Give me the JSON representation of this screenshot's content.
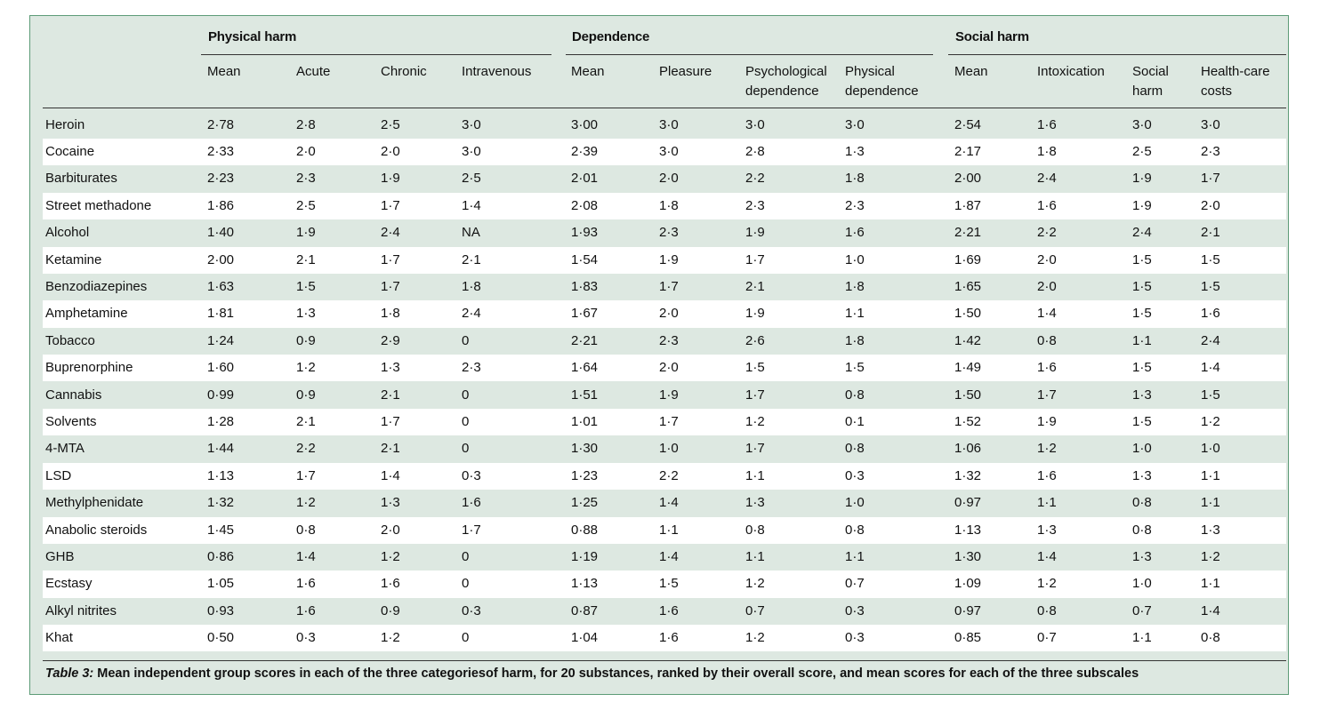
{
  "groups": [
    {
      "label": "Physical harm"
    },
    {
      "label": "Dependence"
    },
    {
      "label": "Social harm"
    }
  ],
  "columns": [
    "Mean",
    "Acute",
    "Chronic",
    "Intravenous",
    "Mean",
    "Pleasure",
    "Psychological\ndependence",
    "Physical\ndependence",
    "Mean",
    "Intoxication",
    "Social\nharm",
    "Health-care\ncosts"
  ],
  "rows": [
    {
      "substance": "Heroin",
      "values": [
        "2·78",
        "2·8",
        "2·5",
        "3·0",
        "3·00",
        "3·0",
        "3·0",
        "3·0",
        "2·54",
        "1·6",
        "3·0",
        "3·0"
      ]
    },
    {
      "substance": "Cocaine",
      "values": [
        "2·33",
        "2·0",
        "2·0",
        "3·0",
        "2·39",
        "3·0",
        "2·8",
        "1·3",
        "2·17",
        "1·8",
        "2·5",
        "2·3"
      ]
    },
    {
      "substance": "Barbiturates",
      "values": [
        "2·23",
        "2·3",
        "1·9",
        "2·5",
        "2·01",
        "2·0",
        "2·2",
        "1·8",
        "2·00",
        "2·4",
        "1·9",
        "1·7"
      ]
    },
    {
      "substance": "Street methadone",
      "values": [
        "1·86",
        "2·5",
        "1·7",
        "1·4",
        "2·08",
        "1·8",
        "2·3",
        "2·3",
        "1·87",
        "1·6",
        "1·9",
        "2·0"
      ]
    },
    {
      "substance": "Alcohol",
      "values": [
        "1·40",
        "1·9",
        "2·4",
        "NA",
        "1·93",
        "2·3",
        "1·9",
        "1·6",
        "2·21",
        "2·2",
        "2·4",
        "2·1"
      ]
    },
    {
      "substance": "Ketamine",
      "values": [
        "2·00",
        "2·1",
        "1·7",
        "2·1",
        "1·54",
        "1·9",
        "1·7",
        "1·0",
        "1·69",
        "2·0",
        "1·5",
        "1·5"
      ]
    },
    {
      "substance": "Benzodiazepines",
      "values": [
        "1·63",
        "1·5",
        "1·7",
        "1·8",
        "1·83",
        "1·7",
        "2·1",
        "1·8",
        "1·65",
        "2·0",
        "1·5",
        "1·5"
      ]
    },
    {
      "substance": "Amphetamine",
      "values": [
        "1·81",
        "1·3",
        "1·8",
        "2·4",
        "1·67",
        "2·0",
        "1·9",
        "1·1",
        "1·50",
        "1·4",
        "1·5",
        "1·6"
      ]
    },
    {
      "substance": "Tobacco",
      "values": [
        "1·24",
        "0·9",
        "2·9",
        "0",
        "2·21",
        "2·3",
        "2·6",
        "1·8",
        "1·42",
        "0·8",
        "1·1",
        "2·4"
      ]
    },
    {
      "substance": "Buprenorphine",
      "values": [
        "1·60",
        "1·2",
        "1·3",
        "2·3",
        "1·64",
        "2·0",
        "1·5",
        "1·5",
        "1·49",
        "1·6",
        "1·5",
        "1·4"
      ]
    },
    {
      "substance": "Cannabis",
      "values": [
        "0·99",
        "0·9",
        "2·1",
        "0",
        "1·51",
        "1·9",
        "1·7",
        "0·8",
        "1·50",
        "1·7",
        "1·3",
        "1·5"
      ]
    },
    {
      "substance": "Solvents",
      "values": [
        "1·28",
        "2·1",
        "1·7",
        "0",
        "1·01",
        "1·7",
        "1·2",
        "0·1",
        "1·52",
        "1·9",
        "1·5",
        "1·2"
      ]
    },
    {
      "substance": "4-MTA",
      "values": [
        "1·44",
        "2·2",
        "2·1",
        "0",
        "1·30",
        "1·0",
        "1·7",
        "0·8",
        "1·06",
        "1·2",
        "1·0",
        "1·0"
      ]
    },
    {
      "substance": "LSD",
      "values": [
        "1·13",
        "1·7",
        "1·4",
        "0·3",
        "1·23",
        "2·2",
        "1·1",
        "0·3",
        "1·32",
        "1·6",
        "1·3",
        "1·1"
      ]
    },
    {
      "substance": "Methylphenidate",
      "values": [
        "1·32",
        "1·2",
        "1·3",
        "1·6",
        "1·25",
        "1·4",
        "1·3",
        "1·0",
        "0·97",
        "1·1",
        "0·8",
        "1·1"
      ]
    },
    {
      "substance": "Anabolic steroids",
      "values": [
        "1·45",
        "0·8",
        "2·0",
        "1·7",
        "0·88",
        "1·1",
        "0·8",
        "0·8",
        "1·13",
        "1·3",
        "0·8",
        "1·3"
      ]
    },
    {
      "substance": "GHB",
      "values": [
        "0·86",
        "1·4",
        "1·2",
        "0",
        "1·19",
        "1·4",
        "1·1",
        "1·1",
        "1·30",
        "1·4",
        "1·3",
        "1·2"
      ]
    },
    {
      "substance": "Ecstasy",
      "values": [
        "1·05",
        "1·6",
        "1·6",
        "0",
        "1·13",
        "1·5",
        "1·2",
        "0·7",
        "1·09",
        "1·2",
        "1·0",
        "1·1"
      ]
    },
    {
      "substance": "Alkyl nitrites",
      "values": [
        "0·93",
        "1·6",
        "0·9",
        "0·3",
        "0·87",
        "1·6",
        "0·7",
        "0·3",
        "0·97",
        "0·8",
        "0·7",
        "1·4"
      ]
    },
    {
      "substance": "Khat",
      "values": [
        "0·50",
        "0·3",
        "1·2",
        "0",
        "1·04",
        "1·6",
        "1·2",
        "0·3",
        "0·85",
        "0·7",
        "1·1",
        "0·8"
      ]
    }
  ],
  "caption": {
    "label": "Table 3:",
    "text": " Mean independent group scores in each of the three categoriesof harm, for 20 substances, ranked by their overall score, and mean scores for each of the three subscales"
  },
  "colors": {
    "background": "#dde8e1",
    "border": "#5d9b77",
    "row_alt": "#ffffff",
    "rule": "#333333"
  }
}
